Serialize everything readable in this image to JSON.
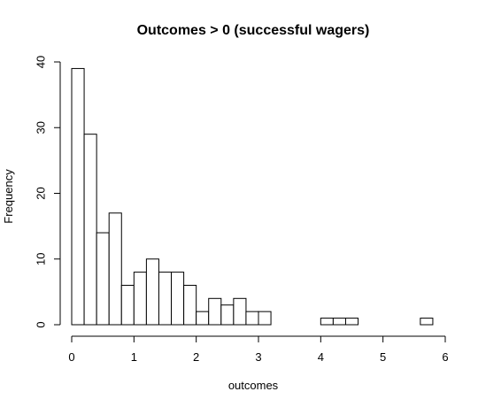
{
  "chart_data": {
    "type": "bar",
    "title": "Outcomes > 0 (successful wagers)",
    "xlabel": "outcomes",
    "ylabel": "Frequency",
    "bin_width": 0.2,
    "bin_starts": [
      0.0,
      0.2,
      0.4,
      0.6,
      0.8,
      1.0,
      1.2,
      1.4,
      1.6,
      1.8,
      2.0,
      2.2,
      2.4,
      2.6,
      2.8,
      3.0,
      3.2,
      3.4,
      3.6,
      3.8,
      4.0,
      4.2,
      4.4,
      4.6,
      4.8,
      5.0,
      5.2,
      5.4,
      5.6
    ],
    "values": [
      39,
      29,
      14,
      17,
      6,
      8,
      10,
      8,
      8,
      6,
      2,
      4,
      3,
      4,
      2,
      2,
      0,
      0,
      0,
      0,
      1,
      1,
      1,
      0,
      0,
      0,
      0,
      0,
      1
    ],
    "xlim": [
      0,
      6
    ],
    "ylim": [
      0,
      40
    ],
    "x_ticks": [
      0,
      1,
      2,
      3,
      4,
      5,
      6
    ],
    "y_ticks": [
      0,
      10,
      20,
      30,
      40
    ],
    "grid": false,
    "legend": "none"
  }
}
